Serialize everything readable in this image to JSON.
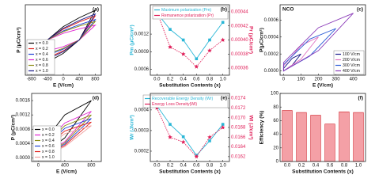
{
  "chart_data": [
    {
      "type": "line",
      "panel_label": "(a)",
      "xlabel": "E (V/cm)",
      "ylabel": "P (μC/cm²)",
      "x": [
        800,
        400,
        0,
        -400,
        -800,
        -400,
        0,
        400
      ],
      "xlim": [
        -950,
        950
      ],
      "xticks": [
        -800,
        -400,
        0,
        400,
        800
      ],
      "ylim": [
        -0.0019,
        0.0019
      ],
      "legend": "lower left",
      "series": [
        {
          "name": "x = 0.0",
          "color": "#000000",
          "values": [
            0.0016,
            0.0012,
            0.00072,
            0,
            -0.0016,
            -0.0012,
            -0.00072,
            0
          ]
        },
        {
          "name": "x = 0.2",
          "color": "#e0201b",
          "values": [
            0.0013,
            0.000975,
            0.000585,
            0,
            -0.0013,
            -0.000975,
            -0.000585,
            0
          ]
        },
        {
          "name": "x = 0.4",
          "color": "#1f3fd6",
          "values": [
            0.0011,
            0.000825,
            0.000495,
            0,
            -0.0011,
            -0.000825,
            -0.000495,
            0
          ]
        },
        {
          "name": "x = 0.6",
          "color": "#e020d0",
          "values": [
            0.0008,
            0.0006,
            0.00036,
            0,
            -0.0008,
            -0.0006,
            -0.00036,
            0
          ]
        },
        {
          "name": "x = 0.8",
          "color": "#8a8a10",
          "values": [
            0.001,
            0.00075,
            0.00045,
            0,
            -0.001,
            -0.00075,
            -0.00045,
            0
          ]
        },
        {
          "name": "x = 1.0",
          "color": "#1a1a8a",
          "values": [
            0.0014,
            0.00105,
            0.00063,
            0,
            -0.0014,
            -0.00105,
            -0.00063,
            0
          ]
        }
      ]
    },
    {
      "type": "line",
      "panel_label": "(b)",
      "xlabel": "Substitution Contents (x)",
      "ylabel": "Pm (μC/cm²)",
      "y2label": "Pr (μC/cm²)",
      "categories": [
        "0.0",
        "0.2",
        "0.4",
        "0.6",
        "0.8",
        "1.0"
      ],
      "ylim": [
        0.0005,
        0.0017
      ],
      "yticks": [
        0.0006,
        0.0009,
        0.0012
      ],
      "y2lim": [
        0.00035,
        0.00045
      ],
      "y2ticks": [
        0.00036,
        0.00038,
        {
          "value": 0.0004,
          "label": "0.00040"
        },
        0.00042,
        0.00044
      ],
      "legend": "upper right",
      "series": [
        {
          "name": "Maximum polarization (Pm)",
          "color": "#29b6d6",
          "marker": "square",
          "values": [
            0.00156,
            0.00128,
            0.0011,
            0.00078,
            0.0011,
            0.0014
          ]
        },
        {
          "name": "Remanence polarization (Pr)",
          "color": "#e0205a",
          "marker": "star",
          "dash": true,
          "axis": "y2",
          "values": [
            0.00044,
            0.00039,
            0.00038,
            0.000362,
            0.000385,
            0.0004
          ]
        }
      ]
    },
    {
      "type": "line",
      "panel_label": "(c)",
      "annotation": "NCO",
      "xlabel": "E (V/cm)",
      "ylabel": "P(μC/cm²)",
      "xlim": [
        -20,
        470
      ],
      "xticks": [
        0,
        100,
        200,
        300,
        400
      ],
      "ylim": [
        -5e-05,
        0.00078
      ],
      "yticks": [
        {
          "value": 0,
          "label": "0.0000"
        },
        0.0002,
        0.0004,
        0.0006
      ],
      "legend": "lower right",
      "series": [
        {
          "name": "100 V/cm",
          "color": "#1a1a8a",
          "x": [
            0,
            50,
            100,
            50,
            0
          ],
          "values": [
            0,
            7e-05,
            0.0002,
            0.00015,
            3e-05
          ]
        },
        {
          "name": "200 V/cm",
          "color": "#e070c0",
          "x": [
            0,
            100,
            200,
            100,
            0
          ],
          "values": [
            0,
            0.00014,
            0.0004,
            0.0003,
            6e-05
          ]
        },
        {
          "name": "300 V/cm",
          "color": "#2a5ad6",
          "x": [
            0,
            150,
            300,
            150,
            0
          ],
          "values": [
            0,
            0.000175,
            0.0005,
            0.000375,
            7.5e-05
          ]
        },
        {
          "name": "400 V/cm",
          "color": "#8a3ab8",
          "x": [
            0,
            200,
            400,
            200,
            0
          ],
          "values": [
            0,
            0.00024,
            0.00068,
            0.00051,
            0.0001
          ]
        }
      ]
    },
    {
      "type": "line",
      "panel_label": "(d)",
      "xlabel": "E (V/cm)",
      "ylabel": "P (μC/cm²)",
      "x": [
        0,
        400,
        800,
        400,
        0
      ],
      "xlim": [
        -100,
        950
      ],
      "xticks": [
        0,
        400,
        800
      ],
      "ylim": [
        -0.0001,
        0.0018
      ],
      "yticks": [
        {
          "value": 0,
          "label": "0.0000"
        },
        0.0004,
        0.0008,
        0.0012,
        0.0016
      ],
      "legend": "lower left",
      "series": [
        {
          "name": "x = 0.0",
          "color": "#000000",
          "values": [
            0,
            0.00056,
            0.0016,
            0.0012,
            0.00024
          ]
        },
        {
          "name": "x = 0.2",
          "color": "#e020d0",
          "values": [
            0,
            0.000455,
            0.0013,
            0.000975,
            0.000195
          ]
        },
        {
          "name": "x = 0.4",
          "color": "#8a8a10",
          "values": [
            0,
            0.00042,
            0.0012,
            0.0009,
            0.00018
          ]
        },
        {
          "name": "x = 0.6",
          "color": "#1f3fd6",
          "values": [
            0,
            0.000385,
            0.0011,
            0.000825,
            0.000165
          ]
        },
        {
          "name": "x = 0.8",
          "color": "#e0201b",
          "values": [
            0,
            0.00035,
            0.001,
            0.00075,
            0.00015
          ]
        },
        {
          "name": "x = 1.0",
          "color": "#f0a0a0",
          "values": [
            0,
            0.000315,
            0.0009,
            0.000675,
            0.000135
          ]
        }
      ]
    },
    {
      "type": "line",
      "panel_label": "(e)",
      "xlabel": "Substitution Contents (x)",
      "ylabel": "Wr (J/cm³)",
      "y2label": "Wl (J/cm³)",
      "categories": [
        "0.0",
        "0.2",
        "0.4",
        "0.6",
        "0.8",
        "1.0"
      ],
      "ylim": [
        0.00015,
        0.00048
      ],
      "yticks": [
        0.0002,
        0.0003,
        0.0004
      ],
      "y2lim": [
        0.0161,
        0.0175
      ],
      "y2ticks": [
        0.0162,
        0.0164,
        0.0166,
        0.0168,
        {
          "value": 0.017,
          "label": "0.0170"
        },
        0.0172,
        0.0174
      ],
      "legend": "upper right",
      "series": [
        {
          "name": "Recoverable Energy Density (Wr)",
          "color": "#29b6d6",
          "marker": "square",
          "values": [
            0.00042,
            0.00033,
            0.00027,
            0.00018,
            0.00025,
            0.00033
          ]
        },
        {
          "name": "Energy Loss Density(Wl)",
          "color": "#e0205a",
          "marker": "star",
          "dash": true,
          "axis": "y2",
          "values": [
            0.0172,
            0.0166,
            0.0165,
            0.0162,
            0.0166,
            0.0168
          ]
        }
      ]
    },
    {
      "type": "bar",
      "panel_label": "(f)",
      "xlabel": "Substitution Contents (x)",
      "ylabel": "Efficiency (%)",
      "categories": [
        "0.0",
        "0.2",
        "0.4",
        "0.6",
        "0.8",
        "1.0"
      ],
      "ylim": [
        0,
        100
      ],
      "yticks": [
        0,
        20,
        40,
        60,
        80,
        100
      ],
      "color": "#f4a0a6",
      "edge_color": "#d0202a",
      "values": [
        75,
        72,
        68,
        55,
        73,
        72
      ]
    }
  ]
}
